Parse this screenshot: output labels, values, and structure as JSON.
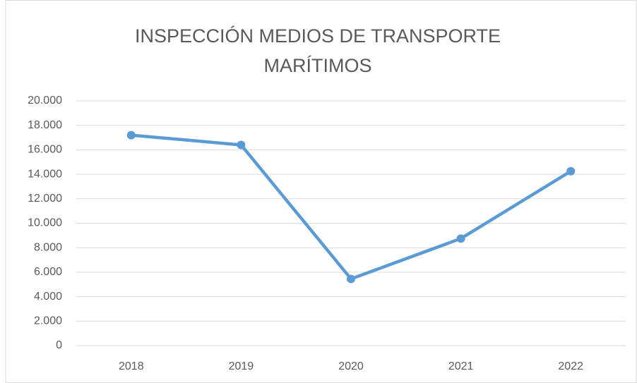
{
  "chart_data": {
    "type": "line",
    "title": "INSPECCIÓN MEDIOS DE TRANSPORTE MARÍTIMOS",
    "categories": [
      "2018",
      "2019",
      "2020",
      "2021",
      "2022"
    ],
    "values": [
      17200,
      16400,
      5450,
      8750,
      14250
    ],
    "color": "#5b9bd5",
    "ylim": [
      0,
      20000
    ],
    "yticks": [
      0,
      {
        "value": 2000,
        "label": "2.000"
      },
      {
        "value": 4000,
        "label": "4.000"
      },
      {
        "value": 6000,
        "label": "6.000"
      },
      {
        "value": 8000,
        "label": "8.000"
      },
      {
        "value": 10000,
        "label": "10.000"
      },
      {
        "value": 12000,
        "label": "12.000"
      },
      {
        "value": 14000,
        "label": "14.000"
      },
      {
        "value": 16000,
        "label": "16.000"
      },
      {
        "value": 18000,
        "label": "18.000"
      },
      {
        "value": 20000,
        "label": "20.000"
      }
    ],
    "grid": true
  }
}
